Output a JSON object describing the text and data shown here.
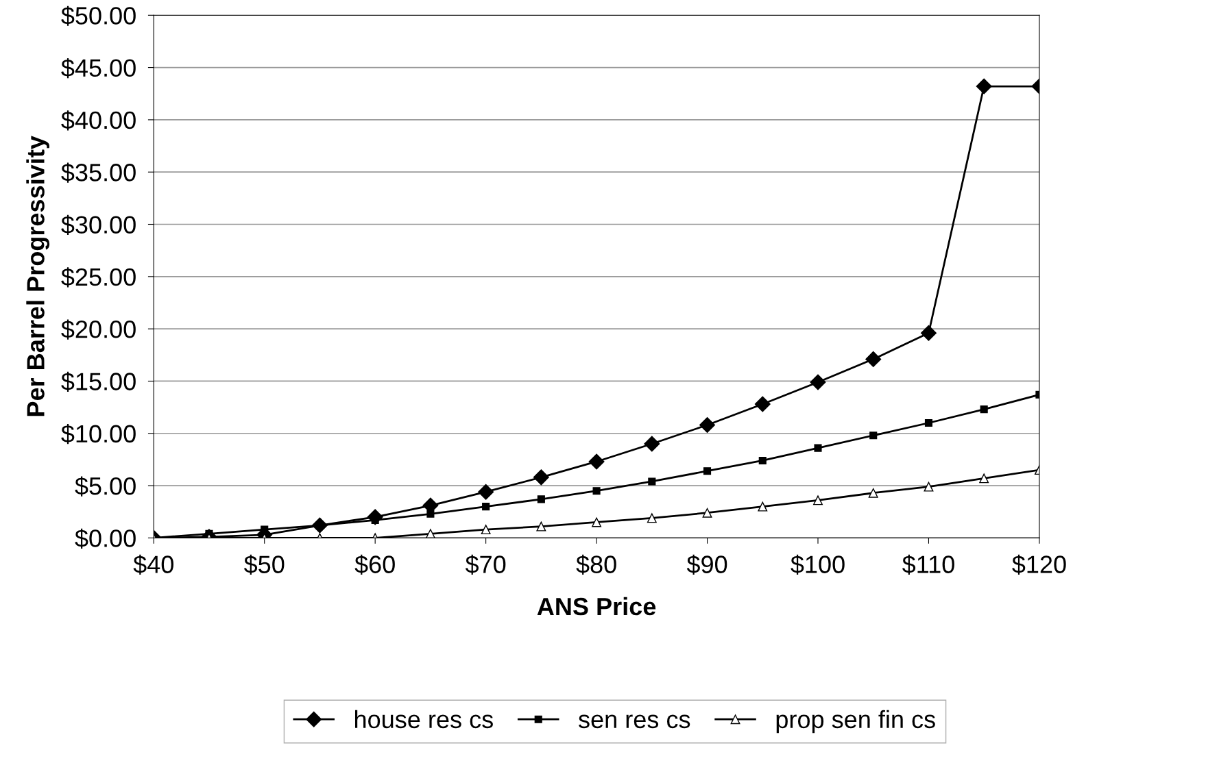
{
  "chart_data": {
    "type": "line",
    "xlabel": "ANS Price",
    "ylabel": "Per Barrel Progressivity",
    "x": [
      40,
      45,
      50,
      55,
      60,
      65,
      70,
      75,
      80,
      85,
      90,
      95,
      100,
      105,
      110,
      115,
      120
    ],
    "series": [
      {
        "name": "house res cs",
        "color": "#000000",
        "marker": "diamond",
        "values": [
          0,
          0.1,
          0.3,
          1.2,
          2.0,
          3.1,
          4.4,
          5.8,
          7.3,
          9.0,
          10.8,
          12.8,
          14.9,
          17.1,
          19.6,
          43.2,
          43.2
        ]
      },
      {
        "name": "sen res cs",
        "color": "#000000",
        "marker": "square",
        "values": [
          0,
          0.4,
          0.8,
          1.2,
          1.7,
          2.3,
          3.0,
          3.7,
          4.5,
          5.4,
          6.4,
          7.4,
          8.6,
          9.8,
          11.0,
          12.3,
          13.7
        ]
      },
      {
        "name": "prop sen fin cs",
        "color": "#000000",
        "marker": "triangle",
        "values": [
          0,
          0,
          0,
          0,
          0,
          0.4,
          0.8,
          1.1,
          1.5,
          1.9,
          2.4,
          3.0,
          3.6,
          4.3,
          4.9,
          5.7,
          6.5
        ]
      }
    ],
    "xlim": [
      40,
      120
    ],
    "xticks": [
      {
        "value": 40,
        "label": "$40"
      },
      {
        "value": 50,
        "label": "$50"
      },
      {
        "value": 60,
        "label": "$60"
      },
      {
        "value": 70,
        "label": "$70"
      },
      {
        "value": 80,
        "label": "$80"
      },
      {
        "value": 90,
        "label": "$90"
      },
      {
        "value": 100,
        "label": "$100"
      },
      {
        "value": 110,
        "label": "$110"
      },
      {
        "value": 120,
        "label": "$120"
      }
    ],
    "ylim": [
      0,
      50
    ],
    "yticks": [
      {
        "value": 0,
        "label": "$0.00"
      },
      {
        "value": 5,
        "label": "$5.00"
      },
      {
        "value": 10,
        "label": "$10.00"
      },
      {
        "value": 15,
        "label": "$15.00"
      },
      {
        "value": 20,
        "label": "$20.00"
      },
      {
        "value": 25,
        "label": "$25.00"
      },
      {
        "value": 30,
        "label": "$30.00"
      },
      {
        "value": 35,
        "label": "$35.00"
      },
      {
        "value": 40,
        "label": "$40.00"
      },
      {
        "value": 45,
        "label": "$45.00"
      },
      {
        "value": 50,
        "label": "$50.00"
      }
    ],
    "grid": "y",
    "legend": "bottom",
    "line_style": "solid"
  }
}
